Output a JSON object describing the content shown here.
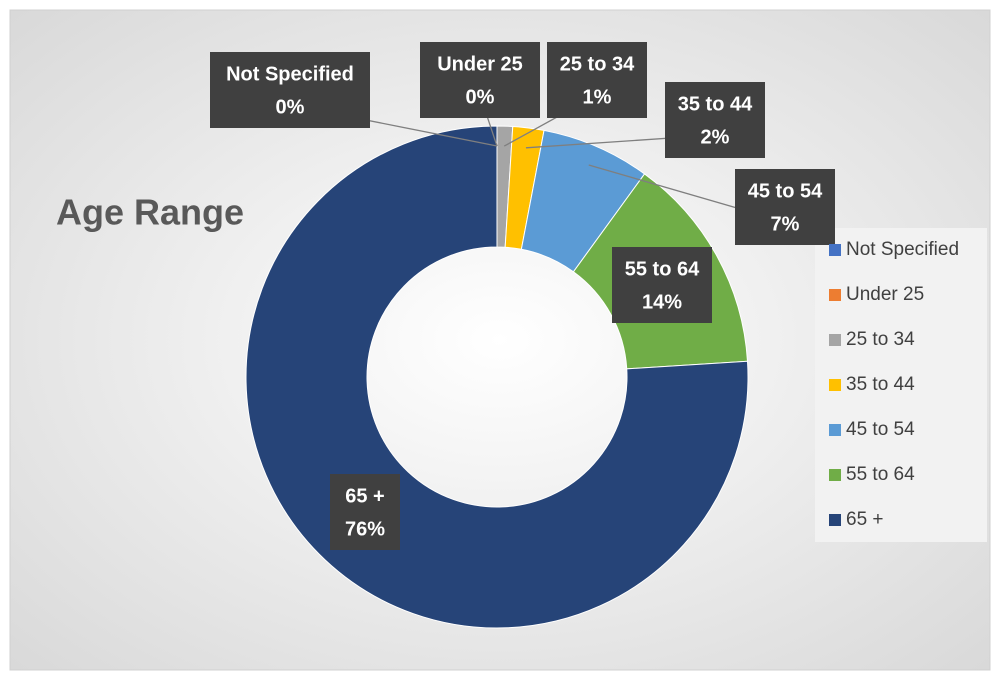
{
  "chart_data": {
    "type": "donut",
    "title": "Age Range",
    "categories": [
      "Not Specified",
      "Under 25",
      "25 to 34",
      "35 to 44",
      "45 to 54",
      "55 to 64",
      "65 +"
    ],
    "values": [
      0,
      0,
      1,
      2,
      7,
      14,
      76
    ],
    "value_labels": [
      "0%",
      "0%",
      "1%",
      "2%",
      "7%",
      "14%",
      "76%"
    ],
    "colors": [
      "#4472c4",
      "#ed7d31",
      "#a5a5a5",
      "#ffc000",
      "#5b9bd5",
      "#70ad47",
      "#264478"
    ],
    "legend": "right"
  }
}
